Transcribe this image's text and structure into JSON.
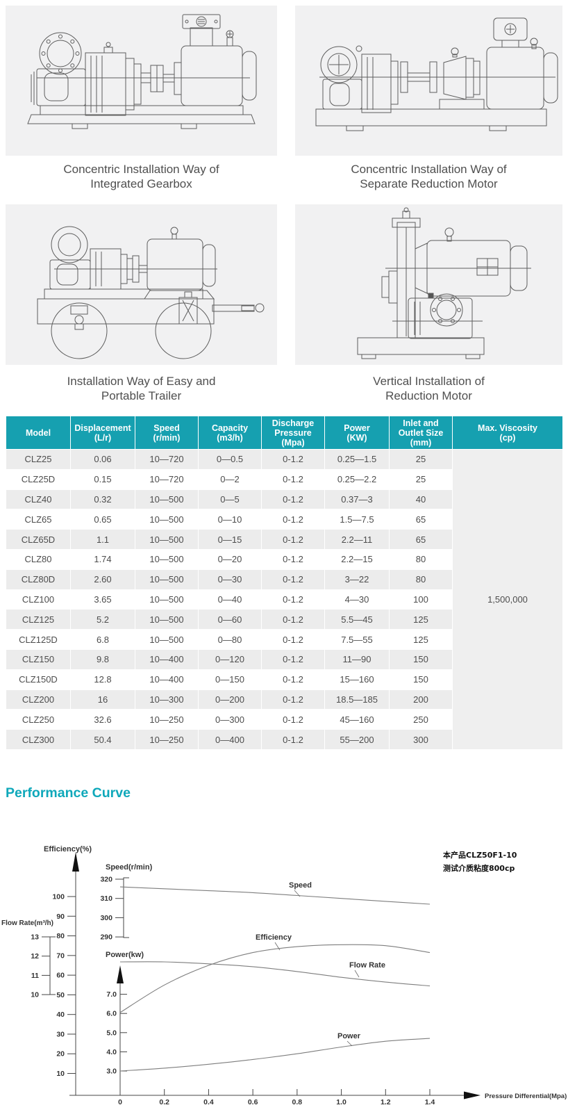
{
  "installation_diagrams": [
    {
      "caption": "Concentric Installation Way of\nIntegrated Gearbox"
    },
    {
      "caption": "Concentric Installation Way of\nSeparate Reduction Motor"
    },
    {
      "caption": "Installation Way of Easy and\nPortable Trailer"
    },
    {
      "caption": "Vertical Installation of\nReduction Motor"
    }
  ],
  "spec_table": {
    "headers": [
      "Model",
      "Displacement\n(L/r)",
      "Speed\n(r/min)",
      "Capacity\n(m3/h)",
      "Discharge\nPressure\n(Mpa)",
      "Power\n(KW)",
      "Inlet and\nOutlet Size\n(mm)",
      "Max. Viscosity\n(cp)"
    ],
    "max_viscosity_value": "1,500,000",
    "rows": [
      [
        "CLZ25",
        "0.06",
        "10—720",
        "0—0.5",
        "0-1.2",
        "0.25—1.5",
        "25"
      ],
      [
        "CLZ25D",
        "0.15",
        "10—720",
        "0—2",
        "0-1.2",
        "0.25—2.2",
        "25"
      ],
      [
        "CLZ40",
        "0.32",
        "10—500",
        "0—5",
        "0-1.2",
        "0.37—3",
        "40"
      ],
      [
        "CLZ65",
        "0.65",
        "10—500",
        "0—10",
        "0-1.2",
        "1.5—7.5",
        "65"
      ],
      [
        "CLZ65D",
        "1.1",
        "10—500",
        "0—15",
        "0-1.2",
        "2.2—11",
        "65"
      ],
      [
        "CLZ80",
        "1.74",
        "10—500",
        "0—20",
        "0-1.2",
        "2.2—15",
        "80"
      ],
      [
        "CLZ80D",
        "2.60",
        "10—500",
        "0—30",
        "0-1.2",
        "3—22",
        "80"
      ],
      [
        "CLZ100",
        "3.65",
        "10—500",
        "0—40",
        "0-1.2",
        "4—30",
        "100"
      ],
      [
        "CLZ125",
        "5.2",
        "10—500",
        "0—60",
        "0-1.2",
        "5.5—45",
        "125"
      ],
      [
        "CLZ125D",
        "6.8",
        "10—500",
        "0—80",
        "0-1.2",
        "7.5—55",
        "125"
      ],
      [
        "CLZ150",
        "9.8",
        "10—400",
        "0—120",
        "0-1.2",
        "11—90",
        "150"
      ],
      [
        "CLZ150D",
        "12.8",
        "10—400",
        "0—150",
        "0-1.2",
        "15—160",
        "150"
      ],
      [
        "CLZ200",
        "16",
        "10—300",
        "0—200",
        "0-1.2",
        "18.5—185",
        "200"
      ],
      [
        "CLZ250",
        "32.6",
        "10—250",
        "0—300",
        "0-1.2",
        "45—160",
        "250"
      ],
      [
        "CLZ300",
        "50.4",
        "10—250",
        "0—400",
        "0-1.2",
        "55—200",
        "300"
      ]
    ]
  },
  "performance_section": {
    "title": "Performance Curve",
    "annotation_line1": "本产品CLZ50F1-10",
    "annotation_line2": "测试介质粘度800cp"
  },
  "chart_data": {
    "type": "line",
    "x_axis": {
      "label": "Pressure Differential(Mpa)",
      "ticks": [
        "0",
        "0.2",
        "0.4",
        "0.6",
        "0.8",
        "1.0",
        "1.2",
        "1.4"
      ],
      "range": [
        0,
        1.4
      ]
    },
    "y_axes": [
      {
        "name": "efficiency",
        "label": "Efficiency(%)",
        "ticks": [
          "10",
          "20",
          "30",
          "40",
          "50",
          "60",
          "70",
          "80",
          "90",
          "100"
        ]
      },
      {
        "name": "flow_rate",
        "label": "Flow Rate(m³/h)",
        "ticks": [
          "10",
          "11",
          "12",
          "13"
        ]
      },
      {
        "name": "speed",
        "label": "Speed(r/min)",
        "ticks": [
          "290",
          "300",
          "310",
          "320"
        ]
      },
      {
        "name": "power",
        "label": "Power(kw)",
        "ticks": [
          "3.0",
          "4.0",
          "5.0",
          "6.0",
          "7.0"
        ]
      }
    ],
    "x": [
      0,
      0.2,
      0.4,
      0.6,
      0.8,
      1.0,
      1.2,
      1.4
    ],
    "series": [
      {
        "name": "Speed",
        "axis": "speed",
        "values": [
          316,
          315,
          314,
          313,
          311.5,
          310,
          308.5,
          307
        ]
      },
      {
        "name": "Efficiency",
        "axis": "efficiency",
        "values": [
          41,
          55,
          65,
          71.5,
          74.5,
          75.5,
          75,
          71.5
        ]
      },
      {
        "name": "Flow Rate",
        "axis": "flow_rate",
        "values": [
          11.7,
          11.7,
          11.6,
          11.45,
          11.2,
          10.9,
          10.65,
          10.45
        ]
      },
      {
        "name": "Power",
        "axis": "power",
        "values": [
          3.0,
          3.15,
          3.35,
          3.6,
          3.9,
          4.25,
          4.55,
          4.7
        ]
      }
    ],
    "legend_position": "inline-labels",
    "grid": false
  }
}
